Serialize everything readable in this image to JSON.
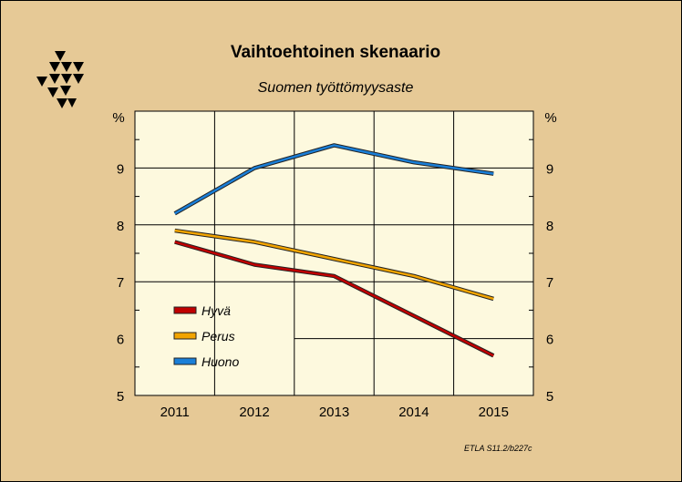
{
  "logo_icon": "etla-triangle-logo",
  "chart_data": {
    "type": "line",
    "title": "Vaihtoehtoinen skenaario",
    "subtitle": "Suomen työttömyysaste",
    "y_unit": "%",
    "x": [
      "2011",
      "2012",
      "2013",
      "2014",
      "2015"
    ],
    "ylim": [
      5,
      10
    ],
    "y_ticks": [
      "5",
      "6",
      "7",
      "8",
      "9"
    ],
    "grid": true,
    "legend_position": "lower-left",
    "series": [
      {
        "name": "Hyvä",
        "values": [
          7.7,
          7.3,
          7.1,
          6.4,
          5.7
        ],
        "color": "#c00000"
      },
      {
        "name": "Perus",
        "values": [
          7.9,
          7.7,
          7.4,
          7.1,
          6.7
        ],
        "color": "#f2a400"
      },
      {
        "name": "Huono",
        "values": [
          8.2,
          9.0,
          9.4,
          9.1,
          8.9
        ],
        "color": "#1a7fd8"
      }
    ],
    "source_note": "ETLA S11.2/b227c"
  },
  "colors": {
    "background": "#e6c996",
    "plot_background": "#fdf9de"
  }
}
